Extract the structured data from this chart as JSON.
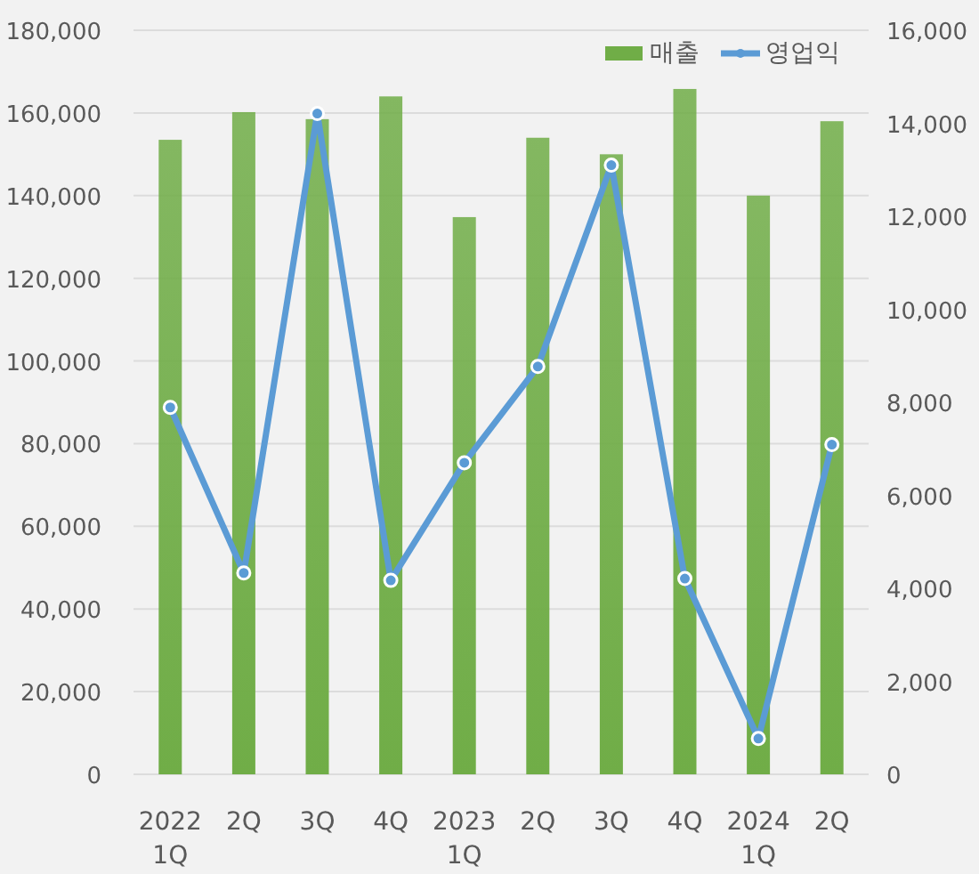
{
  "chart_data": {
    "type": "bar",
    "categories": [
      "2022\n1Q",
      "2Q",
      "3Q",
      "4Q",
      "2023\n1Q",
      "2Q",
      "3Q",
      "4Q",
      "2024\n1Q",
      "2Q"
    ],
    "series": [
      {
        "name": "매출",
        "color": "#70ad47",
        "values": [
          153500,
          160200,
          158500,
          164000,
          134800,
          154000,
          150000,
          165800,
          140000,
          158000
        ]
      },
      {
        "name": "영업익",
        "type": "line",
        "axis": "y2",
        "color": "#5b9bd5",
        "marker": "circle",
        "values": [
          7890,
          4330,
          14210,
          4170,
          6700,
          8770,
          13100,
          4210,
          770,
          7090
        ]
      }
    ],
    "ylim": [
      0,
      180000
    ],
    "yticks": [
      {
        "value": 0,
        "label": "0"
      },
      {
        "value": 20000,
        "label": "20,000"
      },
      {
        "value": 40000,
        "label": "40,000"
      },
      {
        "value": 60000,
        "label": "60,000"
      },
      {
        "value": 80000,
        "label": "80,000"
      },
      {
        "value": 100000,
        "label": "100,000"
      },
      {
        "value": 120000,
        "label": "120,000"
      },
      {
        "value": 140000,
        "label": "140,000"
      },
      {
        "value": 160000,
        "label": "160,000"
      },
      {
        "value": 180000,
        "label": "180,000"
      }
    ],
    "y2lim": [
      0,
      16000
    ],
    "y2ticks": [
      {
        "value": 0,
        "label": "0"
      },
      {
        "value": 2000,
        "label": "2,000"
      },
      {
        "value": 4000,
        "label": "4,000"
      },
      {
        "value": 6000,
        "label": "6,000"
      },
      {
        "value": 8000,
        "label": "8,000"
      },
      {
        "value": 10000,
        "label": "10,000"
      },
      {
        "value": 12000,
        "label": "12,000"
      },
      {
        "value": 14000,
        "label": "14,000"
      },
      {
        "value": 16000,
        "label": "16,000"
      }
    ],
    "grid": "y",
    "legend": "top right"
  }
}
